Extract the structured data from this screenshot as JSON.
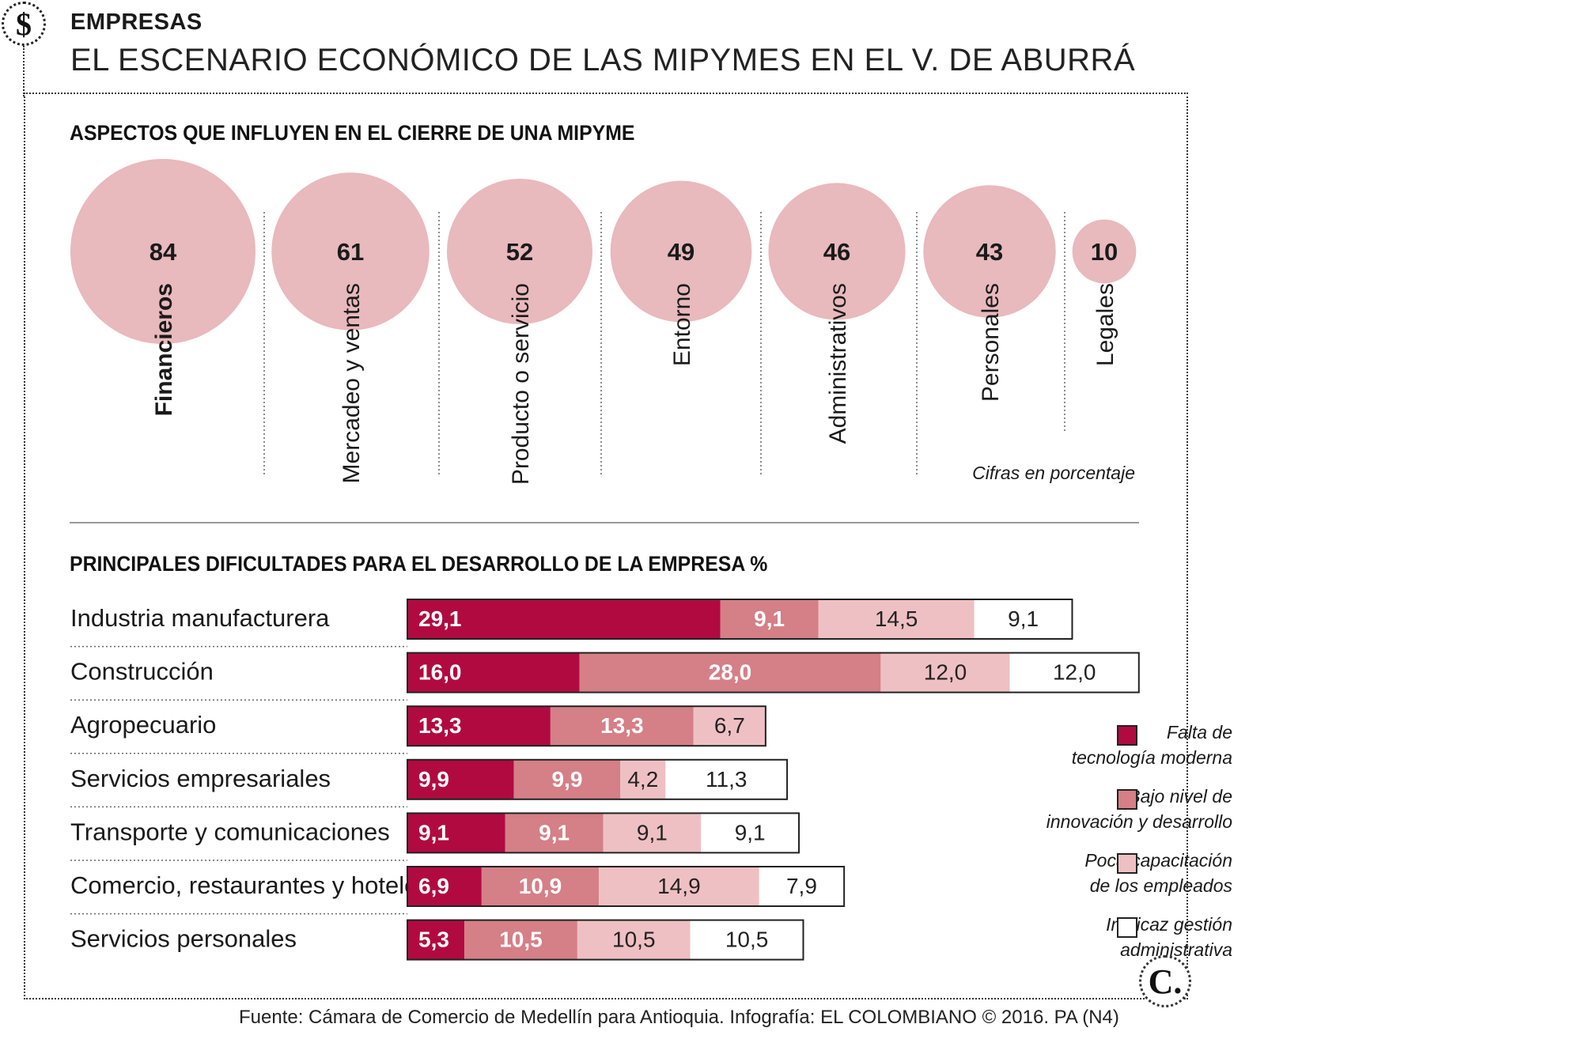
{
  "header": {
    "icon": "dollar-sign-icon",
    "icon_glyph": "$",
    "section": "EMPRESAS",
    "title": "EL ESCENARIO ECONÓMICO DE LAS MIPYMES EN EL V. DE ABURRÁ"
  },
  "chart_data": [
    {
      "type": "bubble",
      "title": "ASPECTOS QUE INFLUYEN EN EL CIERRE DE UNA MIPYME",
      "categories": [
        "Financieros",
        "Mercadeo y ventas",
        "Producto o servicio",
        "Entorno",
        "Administrativos",
        "Personales",
        "Legales"
      ],
      "values": [
        84,
        61,
        52,
        49,
        46,
        43,
        10
      ],
      "value_labels": [
        "84",
        "61",
        "52",
        "49",
        "46",
        "43",
        "10"
      ],
      "unit": "%",
      "note": "Cifras en porcentaje",
      "color": "#e8b9bd"
    },
    {
      "type": "bar",
      "stacked": true,
      "orientation": "horizontal",
      "title": "PRINCIPALES DIFICULTADES PARA EL DESARROLLO DE LA EMPRESA %",
      "categories": [
        "Industria manufacturera",
        "Construcción",
        "Agropecuario",
        "Servicios empresariales",
        "Transporte y comunicaciones",
        "Comercio, restaurantes y hoteles",
        "Servicios personales"
      ],
      "series": [
        {
          "name": "Falta de tecnología moderna",
          "color": "#b10a41",
          "values": [
            29.1,
            16.0,
            13.3,
            9.9,
            9.1,
            6.9,
            5.3
          ],
          "labels": [
            "29,1",
            "16,0",
            "13,3",
            "9,9",
            "9,1",
            "6,9",
            "5,3"
          ]
        },
        {
          "name": "Bajo nivel de innovación y desarrollo",
          "color": "#d57f87",
          "values": [
            9.1,
            28.0,
            13.3,
            9.9,
            9.1,
            10.9,
            10.5
          ],
          "labels": [
            "9,1",
            "28,0",
            "13,3",
            "9,9",
            "9,1",
            "10,9",
            "10,5"
          ]
        },
        {
          "name": "Poca capacitación de los empleados",
          "color": "#efc0c3",
          "values": [
            14.5,
            12.0,
            6.7,
            4.2,
            9.1,
            14.9,
            10.5
          ],
          "labels": [
            "14,5",
            "12,0",
            "6,7",
            "4,2",
            "9,1",
            "14,9",
            "10,5"
          ]
        },
        {
          "name": "Ineficaz gestión administrativa",
          "color": "#ffffff",
          "values": [
            9.1,
            12.0,
            null,
            11.3,
            9.1,
            7.9,
            10.5
          ],
          "labels": [
            "9,1",
            "12,0",
            "",
            "11,3",
            "9,1",
            "7,9",
            "10,5"
          ]
        }
      ],
      "legend": [
        {
          "line1": "Falta de",
          "line2": "tecnología moderna"
        },
        {
          "line1": "Bajo nivel de",
          "line2": "innovación y desarrollo"
        },
        {
          "line1": "Poca capacitación",
          "line2": "de los empleados"
        },
        {
          "line1": "Ineficaz gestión",
          "line2": "administrativa"
        }
      ],
      "legend_placement": "bottom-right"
    }
  ],
  "footer": {
    "source": "Fuente: Cámara de Comercio de Medellín para Antioquia. Infografía: EL COLOMBIANO © 2016. PA (N4)",
    "brand_icon": "el-colombiano-logo-icon",
    "brand_glyph": "C."
  }
}
